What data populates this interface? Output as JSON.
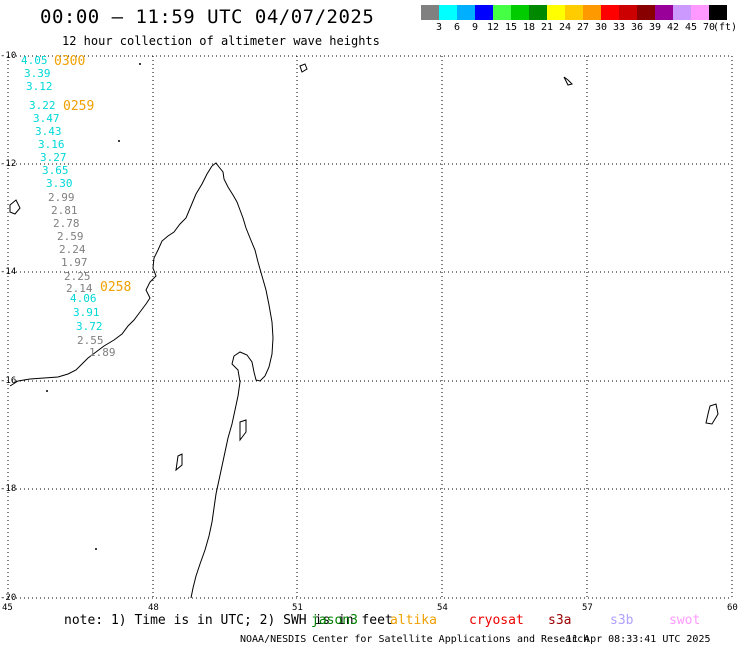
{
  "title": "00:00 – 11:59 UTC 04/07/2025",
  "subtitle": "12 hour collection of altimeter wave heights",
  "scale": {
    "colors": [
      "#808080",
      "#00ffff",
      "#00b0ff",
      "#0000ff",
      "#44ff44",
      "#00cc00",
      "#008800",
      "#ffff00",
      "#ffcc00",
      "#ff9900",
      "#ff0000",
      "#cc0000",
      "#880000",
      "#990099",
      "#cc99ff",
      "#ff99ff",
      "#000000"
    ],
    "ticks": [
      "3",
      "6",
      "9",
      "12",
      "15",
      "18",
      "21",
      "24",
      "27",
      "30",
      "33",
      "36",
      "39",
      "42",
      "45",
      "70"
    ],
    "unit": "(ft)"
  },
  "axes": {
    "lon_labels": [
      "45",
      "48",
      "51",
      "54",
      "57",
      "60"
    ],
    "lat_labels": [
      "-10",
      "-12",
      "-14",
      "-16",
      "-18",
      "-20"
    ]
  },
  "track": {
    "times": [
      "0300",
      "0259",
      "0258"
    ],
    "values": [
      {
        "v": "4.05",
        "c": "#00d8d8"
      },
      {
        "v": "3.39",
        "c": "#00d8d8"
      },
      {
        "v": "3.12",
        "c": "#00d8d8"
      },
      {
        "v": "3.22",
        "c": "#00d8d8"
      },
      {
        "v": "3.47",
        "c": "#00d8d8"
      },
      {
        "v": "3.43",
        "c": "#00d8d8"
      },
      {
        "v": "3.16",
        "c": "#00d8d8"
      },
      {
        "v": "3.27",
        "c": "#00d8d8"
      },
      {
        "v": "3.65",
        "c": "#00d8d8"
      },
      {
        "v": "3.30",
        "c": "#00d8d8"
      },
      {
        "v": "2.99",
        "c": "#808080"
      },
      {
        "v": "2.81",
        "c": "#808080"
      },
      {
        "v": "2.78",
        "c": "#808080"
      },
      {
        "v": "2.59",
        "c": "#808080"
      },
      {
        "v": "2.24",
        "c": "#808080"
      },
      {
        "v": "1.97",
        "c": "#808080"
      },
      {
        "v": "2.25",
        "c": "#808080"
      },
      {
        "v": "2.14",
        "c": "#808080"
      },
      {
        "v": "4.06",
        "c": "#00d8d8"
      },
      {
        "v": "3.91",
        "c": "#00d8d8"
      },
      {
        "v": "3.72",
        "c": "#00d8d8"
      },
      {
        "v": "2.55",
        "c": "#808080"
      },
      {
        "v": "1.89",
        "c": "#808080"
      }
    ]
  },
  "footer": {
    "note": "note: 1) Time is in UTC; 2) SWH is in feet",
    "legend": [
      {
        "name": "jason3",
        "color": "#008000"
      },
      {
        "name": "altika",
        "color": "#f0a000"
      },
      {
        "name": "cryosat",
        "color": "#ee0000"
      },
      {
        "name": "s3a",
        "color": "#990000"
      },
      {
        "name": "s3b",
        "color": "#b0a0ff"
      },
      {
        "name": "swot",
        "color": "#ff99ff"
      }
    ],
    "credit": "NOAA/NESDIS Center for Satellite Applications and Research",
    "timestamp": "11 Apr 08:33:41 UTC 2025"
  }
}
